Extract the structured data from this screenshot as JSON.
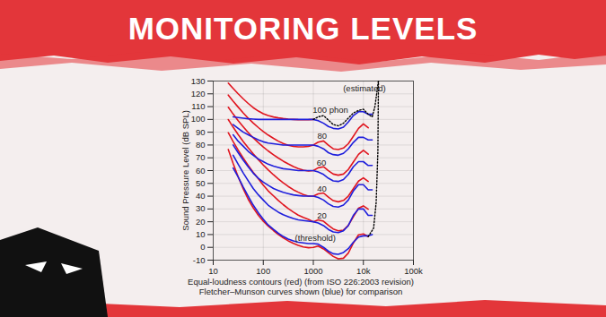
{
  "chart_data": {
    "type": "line",
    "title": "MONITORING LEVELS",
    "ylabel": "Sound Pressure Level (dB SPL)",
    "caption": [
      "Equal-loudness contours (red) (from ISO 226:2003 revision)",
      "Fletcher–Munson curves shown (blue) for comparison"
    ],
    "log": "x",
    "grid": true,
    "xlim": [
      10,
      100000
    ],
    "xticks": [
      10,
      100,
      1000,
      {
        "value": 10000,
        "label": "10k"
      },
      {
        "value": 100000,
        "label": "100k"
      }
    ],
    "ylim": [
      -10,
      130
    ],
    "yticks": [
      -10,
      0,
      10,
      20,
      30,
      40,
      50,
      60,
      70,
      80,
      90,
      100,
      110,
      120,
      130
    ],
    "series": [
      {
        "color": "#e0141e",
        "line_style": "solid",
        "x": [
          20,
          25,
          31.5,
          40,
          50,
          63,
          80,
          100,
          125,
          160,
          200,
          250,
          315,
          400,
          500,
          630,
          800,
          1000
        ],
        "values": [
          128.4,
          124.2,
          120.0,
          116.0,
          112.5,
          109.2,
          106.5,
          104.5,
          103.0,
          101.9,
          101.2,
          100.7,
          100.3,
          100.0,
          99.8,
          99.7,
          99.8,
          100.0
        ]
      },
      {
        "color": "#e0141e",
        "line_style": "solid",
        "x": [
          20,
          25,
          31.5,
          40,
          50,
          63,
          80,
          100,
          125,
          160,
          200,
          250,
          315,
          400,
          500,
          630,
          800,
          1000,
          1250,
          1600,
          2000,
          2500,
          3150,
          4000,
          5000,
          6300,
          8000,
          10000,
          12500
        ],
        "values": [
          119.0,
          114.2,
          109.6,
          105.0,
          101.0,
          97.2,
          93.6,
          90.5,
          87.8,
          85.2,
          83.0,
          81.2,
          79.8,
          78.9,
          78.5,
          78.5,
          78.9,
          80.0,
          82.2,
          83.2,
          79.8,
          77.0,
          76.4,
          77.6,
          81.0,
          86.8,
          93.0,
          96.5,
          93.5
        ]
      },
      {
        "color": "#e0141e",
        "line_style": "solid",
        "x": [
          20,
          25,
          31.5,
          40,
          50,
          63,
          80,
          100,
          125,
          160,
          200,
          250,
          315,
          400,
          500,
          630,
          800,
          1000,
          1250,
          1600,
          2000,
          2500,
          3150,
          4000,
          5000,
          6300,
          8000,
          10000,
          12500
        ],
        "values": [
          109.5,
          104.2,
          99.1,
          94.2,
          89.7,
          85.6,
          81.8,
          78.5,
          75.4,
          72.4,
          69.8,
          67.4,
          65.2,
          63.1,
          61.6,
          60.4,
          59.6,
          60.0,
          62.2,
          63.0,
          59.9,
          57.3,
          56.4,
          57.3,
          60.9,
          66.6,
          72.7,
          75.9,
          72.8
        ]
      },
      {
        "color": "#e0141e",
        "line_style": "solid",
        "x": [
          20,
          25,
          31.5,
          40,
          50,
          63,
          80,
          100,
          125,
          160,
          200,
          250,
          315,
          400,
          500,
          630,
          800,
          1000,
          1250,
          1600,
          2000,
          2500,
          3150,
          4000,
          5000,
          6300,
          8000,
          10000,
          12500
        ],
        "values": [
          99.9,
          93.9,
          88.2,
          82.6,
          77.8,
          73.1,
          68.5,
          64.4,
          60.6,
          56.7,
          53.4,
          50.4,
          47.6,
          45.0,
          43.1,
          41.3,
          40.1,
          40.0,
          41.8,
          42.5,
          39.2,
          36.5,
          35.6,
          36.7,
          40.0,
          45.8,
          51.8,
          54.3,
          51.5
        ]
      },
      {
        "color": "#e0141e",
        "line_style": "solid",
        "x": [
          20,
          25,
          31.5,
          40,
          50,
          63,
          80,
          100,
          125,
          160,
          200,
          250,
          315,
          400,
          500,
          630,
          800,
          1000,
          1250,
          1600,
          2000,
          2500,
          3150,
          4000,
          5000,
          6300,
          8000,
          10000,
          12500
        ],
        "values": [
          89.6,
          82.7,
          76.0,
          69.6,
          64.0,
          58.6,
          53.5,
          48.7,
          44.2,
          40.2,
          36.6,
          33.4,
          30.3,
          27.5,
          25.2,
          23.4,
          21.9,
          20.0,
          21.5,
          20.4,
          17.2,
          14.4,
          12.9,
          13.5,
          17.2,
          23.9,
          30.6,
          32.4,
          29.8
        ]
      },
      {
        "color": "#e0141e",
        "line_style": "solid",
        "x": [
          20,
          25,
          31.5,
          40,
          50,
          63,
          80,
          100,
          125,
          160,
          200,
          250,
          315,
          400,
          500,
          630,
          800,
          1000,
          1250,
          1600,
          2000,
          2500,
          3150,
          4000,
          5000,
          6300,
          8000,
          10000,
          12500
        ],
        "values": [
          76.5,
          65.6,
          55.1,
          45.5,
          37.6,
          30.9,
          25.0,
          20.5,
          16.7,
          13.1,
          10.1,
          7.5,
          5.1,
          3.1,
          1.5,
          0.3,
          -0.3,
          0.0,
          1.0,
          -1.2,
          -4.1,
          -7.1,
          -9.0,
          -8.5,
          -4.5,
          3.3,
          9.8,
          10.5,
          8.4
        ]
      },
      {
        "color": "#1e1edc",
        "line_style": "solid",
        "x": [
          25,
          31.5,
          40,
          50,
          63,
          80,
          100,
          125,
          160,
          200,
          250,
          315,
          400,
          500,
          630,
          800,
          1000,
          1250,
          1600,
          2000,
          2500,
          3150,
          4000,
          5000,
          6300,
          8000,
          10000,
          12500,
          15000
        ],
        "values": [
          102,
          101.5,
          101,
          100.5,
          100.3,
          100,
          100,
          100,
          100,
          100,
          100,
          100,
          100,
          100,
          100,
          100,
          100,
          99,
          97,
          94.5,
          93,
          92.5,
          94,
          98,
          103,
          106,
          106,
          104,
          104
        ]
      },
      {
        "color": "#1e1edc",
        "line_style": "solid",
        "x": [
          25,
          31.5,
          40,
          50,
          63,
          80,
          100,
          125,
          160,
          200,
          250,
          315,
          400,
          500,
          630,
          800,
          1000,
          1250,
          1600,
          2000,
          2500,
          3150,
          4000,
          5000,
          6300,
          8000,
          10000,
          12500,
          15000
        ],
        "values": [
          96,
          93,
          90,
          88,
          86,
          84,
          82.5,
          81.5,
          81,
          80.5,
          80,
          80,
          80,
          80,
          80,
          80,
          80,
          79,
          77,
          74,
          72.5,
          72,
          73.5,
          77,
          82,
          86,
          86,
          84,
          84
        ]
      },
      {
        "color": "#1e1edc",
        "line_style": "solid",
        "x": [
          25,
          31.5,
          40,
          50,
          63,
          80,
          100,
          125,
          160,
          200,
          250,
          315,
          400,
          500,
          630,
          800,
          1000,
          1250,
          1600,
          2000,
          2500,
          3150,
          4000,
          5000,
          6300,
          8000,
          10000,
          12500,
          15000
        ],
        "values": [
          88,
          83,
          79,
          75,
          72,
          69,
          67,
          65,
          63.5,
          62.5,
          61.5,
          61,
          60.5,
          60,
          60,
          60,
          60,
          59,
          57,
          54,
          52,
          51.5,
          53,
          57,
          63,
          67,
          67,
          64,
          64
        ]
      },
      {
        "color": "#1e1edc",
        "line_style": "solid",
        "x": [
          25,
          31.5,
          40,
          50,
          63,
          80,
          100,
          125,
          160,
          200,
          250,
          315,
          400,
          500,
          630,
          800,
          1000,
          1250,
          1600,
          2000,
          2500,
          3150,
          4000,
          5000,
          6300,
          8000,
          10000,
          12500,
          15000
        ],
        "values": [
          80,
          74,
          68,
          63,
          58,
          54,
          51,
          48.5,
          46,
          44.5,
          43,
          42,
          41,
          40.5,
          40,
          40,
          40,
          39,
          37,
          34,
          32,
          31.5,
          33,
          37,
          44,
          49,
          49,
          45,
          45
        ]
      },
      {
        "color": "#1e1edc",
        "line_style": "solid",
        "x": [
          25,
          31.5,
          40,
          50,
          63,
          80,
          100,
          125,
          160,
          200,
          250,
          315,
          400,
          500,
          630,
          800,
          1000,
          1250,
          1600,
          2000,
          2500,
          3150,
          4000,
          5000,
          6300,
          8000,
          10000,
          12500,
          15000
        ],
        "values": [
          72,
          65,
          58,
          52,
          46,
          41,
          37,
          33,
          30,
          27.5,
          25.5,
          24,
          22.5,
          21.5,
          21,
          20.5,
          20,
          19,
          17,
          14,
          12,
          11.5,
          13,
          17,
          25,
          30,
          30,
          25,
          25
        ]
      },
      {
        "color": "#1e1edc",
        "line_style": "solid",
        "x": [
          25,
          31.5,
          40,
          50,
          63,
          80,
          100,
          125,
          160,
          200,
          250,
          315,
          400,
          500,
          630,
          800,
          1000,
          1250,
          1600,
          2000,
          2500,
          3150,
          4000,
          5000,
          6300,
          8000,
          10000,
          12500,
          15000
        ],
        "values": [
          62,
          55,
          47,
          40,
          33,
          27,
          22,
          17.5,
          14,
          11,
          8.5,
          6.5,
          5,
          4,
          3.5,
          3,
          3,
          2.5,
          0,
          -3,
          -5,
          -5.5,
          -4,
          -1,
          4,
          8,
          9,
          9,
          10
        ]
      },
      {
        "color": "#000000",
        "line_style": "dotted",
        "x": [
          1000,
          1250,
          1600,
          2000,
          2500,
          3150,
          4000,
          5000,
          6300,
          8000,
          10000,
          12500,
          15000,
          17000,
          20000
        ],
        "values": [
          100,
          102,
          103,
          99.5,
          96,
          95,
          97,
          101,
          105,
          107,
          108,
          104,
          102,
          110,
          130
        ]
      },
      {
        "color": "#000000",
        "line_style": "dotted",
        "x": [
          12500,
          16000,
          18000,
          19500,
          20000
        ],
        "values": [
          8.4,
          15,
          35,
          75,
          130
        ]
      }
    ],
    "annotations": [
      {
        "text": "(estimated)",
        "x": 10500,
        "y": 124
      },
      {
        "text": "100 phon",
        "x": 2200,
        "y": 107
      },
      {
        "text": "80",
        "x": 1500,
        "y": 87
      },
      {
        "text": "60",
        "x": 1450,
        "y": 66
      },
      {
        "text": "40",
        "x": 1480,
        "y": 46
      },
      {
        "text": "20",
        "x": 1480,
        "y": 25
      },
      {
        "text": "(threshold)",
        "x": 1100,
        "y": 7
      }
    ]
  }
}
